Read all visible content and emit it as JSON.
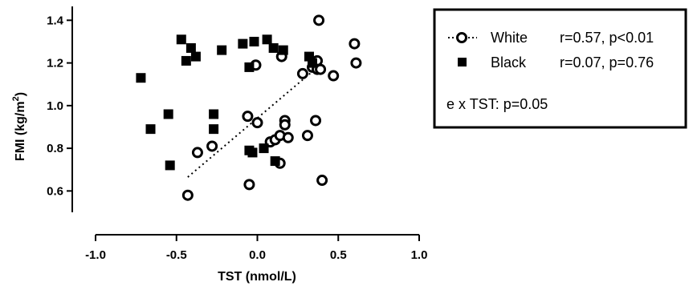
{
  "chart_data": {
    "type": "scatter",
    "xlabel": "TST (nmol/L)",
    "ylabel_main": "FMI (kg/m",
    "ylabel_sup": "2",
    "ylabel_close": ")",
    "xlim": [
      -1.0,
      1.0
    ],
    "ylim": [
      0.5,
      1.45
    ],
    "x_ticks": [
      -1.0,
      -0.5,
      0.0,
      0.5,
      1.0
    ],
    "x_tick_labels": [
      "-1.0",
      "-0.5",
      "0.0",
      "0.5",
      "1.0"
    ],
    "y_ticks": [
      0.6,
      0.8,
      1.0,
      1.2,
      1.4
    ],
    "y_tick_labels": [
      "0.6",
      "0.8",
      "1.0",
      "1.2",
      "1.4"
    ],
    "grid": false,
    "legend_position": "top-right",
    "series": [
      {
        "name": "White",
        "marker": "open-circle",
        "color": "#000000",
        "stat": "r=0.57, p<0.01",
        "points": [
          [
            -0.43,
            0.58
          ],
          [
            -0.37,
            0.78
          ],
          [
            -0.28,
            0.81
          ],
          [
            -0.06,
            0.95
          ],
          [
            -0.05,
            0.63
          ],
          [
            -0.01,
            1.19
          ],
          [
            0.0,
            0.92
          ],
          [
            0.08,
            0.83
          ],
          [
            0.11,
            0.84
          ],
          [
            0.14,
            0.73
          ],
          [
            0.14,
            0.86
          ],
          [
            0.15,
            1.23
          ],
          [
            0.17,
            0.93
          ],
          [
            0.17,
            0.91
          ],
          [
            0.19,
            0.85
          ],
          [
            0.28,
            1.15
          ],
          [
            0.31,
            0.86
          ],
          [
            0.34,
            1.18
          ],
          [
            0.36,
            0.93
          ],
          [
            0.37,
            1.21
          ],
          [
            0.37,
            1.17
          ],
          [
            0.38,
            1.4
          ],
          [
            0.39,
            1.17
          ],
          [
            0.4,
            0.65
          ],
          [
            0.47,
            1.14
          ],
          [
            0.6,
            1.29
          ],
          [
            0.61,
            1.2
          ]
        ],
        "fit_line": [
          [
            -0.43,
            0.665
          ],
          [
            0.41,
            1.205
          ]
        ]
      },
      {
        "name": "Black",
        "marker": "filled-square",
        "color": "#000000",
        "stat": "r=0.07, p=0.76",
        "points": [
          [
            -0.72,
            1.13
          ],
          [
            -0.66,
            0.89
          ],
          [
            -0.55,
            0.96
          ],
          [
            -0.54,
            0.72
          ],
          [
            -0.47,
            1.31
          ],
          [
            -0.44,
            1.21
          ],
          [
            -0.41,
            1.27
          ],
          [
            -0.38,
            1.23
          ],
          [
            -0.22,
            1.26
          ],
          [
            -0.27,
            0.96
          ],
          [
            -0.27,
            0.89
          ],
          [
            -0.09,
            1.29
          ],
          [
            -0.05,
            0.79
          ],
          [
            -0.05,
            1.18
          ],
          [
            -0.03,
            0.78
          ],
          [
            -0.02,
            1.3
          ],
          [
            0.04,
            0.8
          ],
          [
            0.06,
            1.31
          ],
          [
            0.1,
            1.27
          ],
          [
            0.11,
            0.74
          ],
          [
            0.16,
            1.26
          ],
          [
            0.32,
            1.23
          ],
          [
            0.34,
            1.2
          ]
        ]
      }
    ],
    "annotation": "e x TST: p=0.05"
  }
}
